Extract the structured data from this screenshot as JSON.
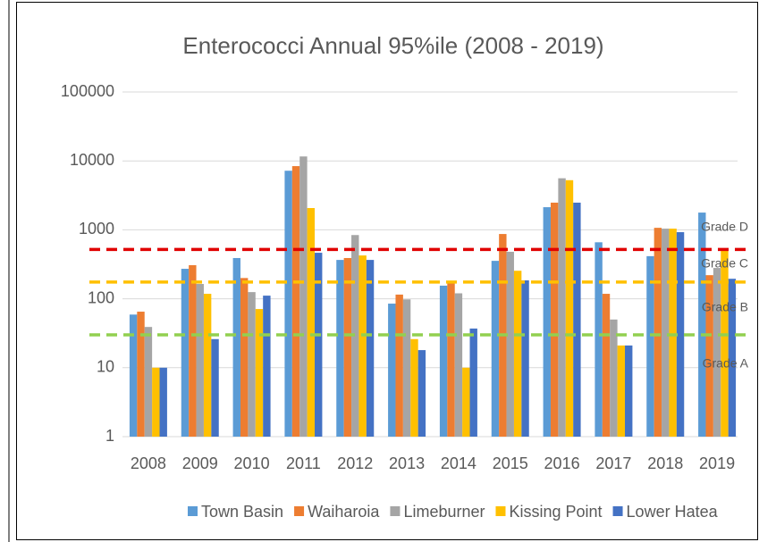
{
  "chart_data": {
    "type": "bar",
    "title": "Enterococci Annual 95%ile (2008 - 2019)",
    "categories": [
      "2008",
      "2009",
      "2010",
      "2011",
      "2012",
      "2013",
      "2014",
      "2015",
      "2016",
      "2017",
      "2018",
      "2019"
    ],
    "series": [
      {
        "name": "Town Basin",
        "color": "#5b9bd5",
        "values": [
          59,
          272,
          390,
          7200,
          366,
          85,
          155,
          355,
          2130,
          660,
          415,
          1780
        ]
      },
      {
        "name": "Waiharoia",
        "color": "#ed7d31",
        "values": [
          65,
          307,
          200,
          8400,
          390,
          115,
          170,
          870,
          2480,
          118,
          1070,
          220
        ]
      },
      {
        "name": "Limeburner",
        "color": "#a5a5a5",
        "values": [
          39,
          164,
          125,
          11600,
          840,
          98,
          120,
          480,
          5600,
          50,
          1040,
          280
        ]
      },
      {
        "name": "Kissing Point",
        "color": "#ffc000",
        "values": [
          10,
          118,
          71,
          2070,
          425,
          26,
          10,
          255,
          5250,
          21,
          1040,
          510
        ]
      },
      {
        "name": "Lower Hatea",
        "color": "#4472c4",
        "values": [
          10,
          26,
          111,
          465,
          366,
          18,
          37,
          185,
          2480,
          21,
          925,
          195
        ]
      }
    ],
    "ylim": [
      1,
      100000
    ],
    "yticks": [
      1,
      10,
      100,
      1000,
      10000,
      100000
    ],
    "log_scale": true,
    "grid": true,
    "legend": "bottom",
    "reference_lines": [
      {
        "value": 520,
        "color": "#e00000"
      },
      {
        "value": 175,
        "color": "#ffc000"
      },
      {
        "value": 30,
        "color": "#92d050"
      }
    ],
    "annotations": [
      {
        "text": "Grade D",
        "color": "#c00000"
      },
      {
        "text": "Grade C",
        "color": "#c00000"
      },
      {
        "text": "Grade B",
        "color": "#ffc000"
      },
      {
        "text": "Grade A",
        "color": "#92d050"
      }
    ]
  }
}
